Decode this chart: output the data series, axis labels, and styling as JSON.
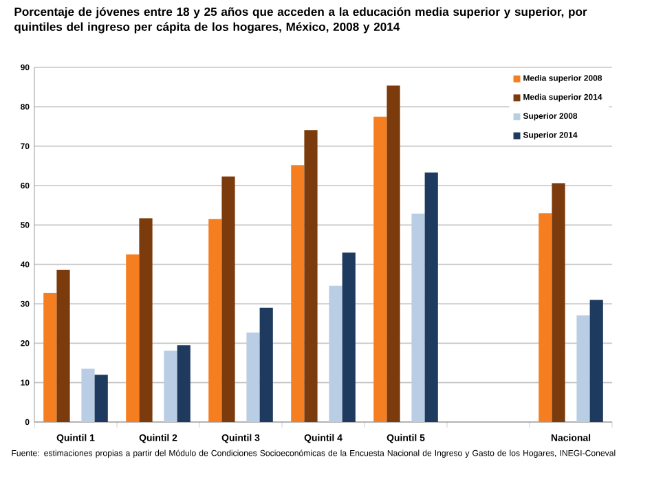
{
  "chart_data": {
    "type": "bar",
    "title": "Porcentaje de jóvenes entre 18 y 25 años que acceden a la educación media superior y superior, por quintiles del ingreso per cápita de los hogares, México, 2008 y 2014",
    "categories": [
      "Quintil 1",
      "Quintil 2",
      "Quintil 3",
      "Quintil 4",
      "Quintil 5",
      null,
      "Nacional"
    ],
    "series": [
      {
        "name": "Media superior 2008",
        "color": "#f57f20",
        "values": [
          32.8,
          42.5,
          51.5,
          65.2,
          77.5,
          null,
          53.0
        ]
      },
      {
        "name": "Media superior 2014",
        "color": "#7b3b0c",
        "values": [
          38.6,
          51.7,
          62.3,
          74.1,
          85.4,
          null,
          60.6
        ]
      },
      {
        "name": "Superior 2008",
        "color": "#b9cde5",
        "values": [
          13.5,
          18.1,
          22.7,
          34.6,
          52.9,
          null,
          27.1
        ]
      },
      {
        "name": "Superior 2014",
        "color": "#1f3a5f",
        "values": [
          12.0,
          19.5,
          29.0,
          43.0,
          63.3,
          null,
          31.0
        ]
      }
    ],
    "ylim": [
      0,
      90
    ],
    "yticks": [
      0,
      10,
      20,
      30,
      40,
      50,
      60,
      70,
      80,
      90
    ],
    "grid": "y",
    "legend": "top right",
    "annotations": [
      "Fuente: estimaciones propias a partir del Módulo de Condiciones Socioeconómicas de la Encuesta Nacional de Ingreso y Gasto de los Hogares, INEGI-Coneval"
    ]
  }
}
